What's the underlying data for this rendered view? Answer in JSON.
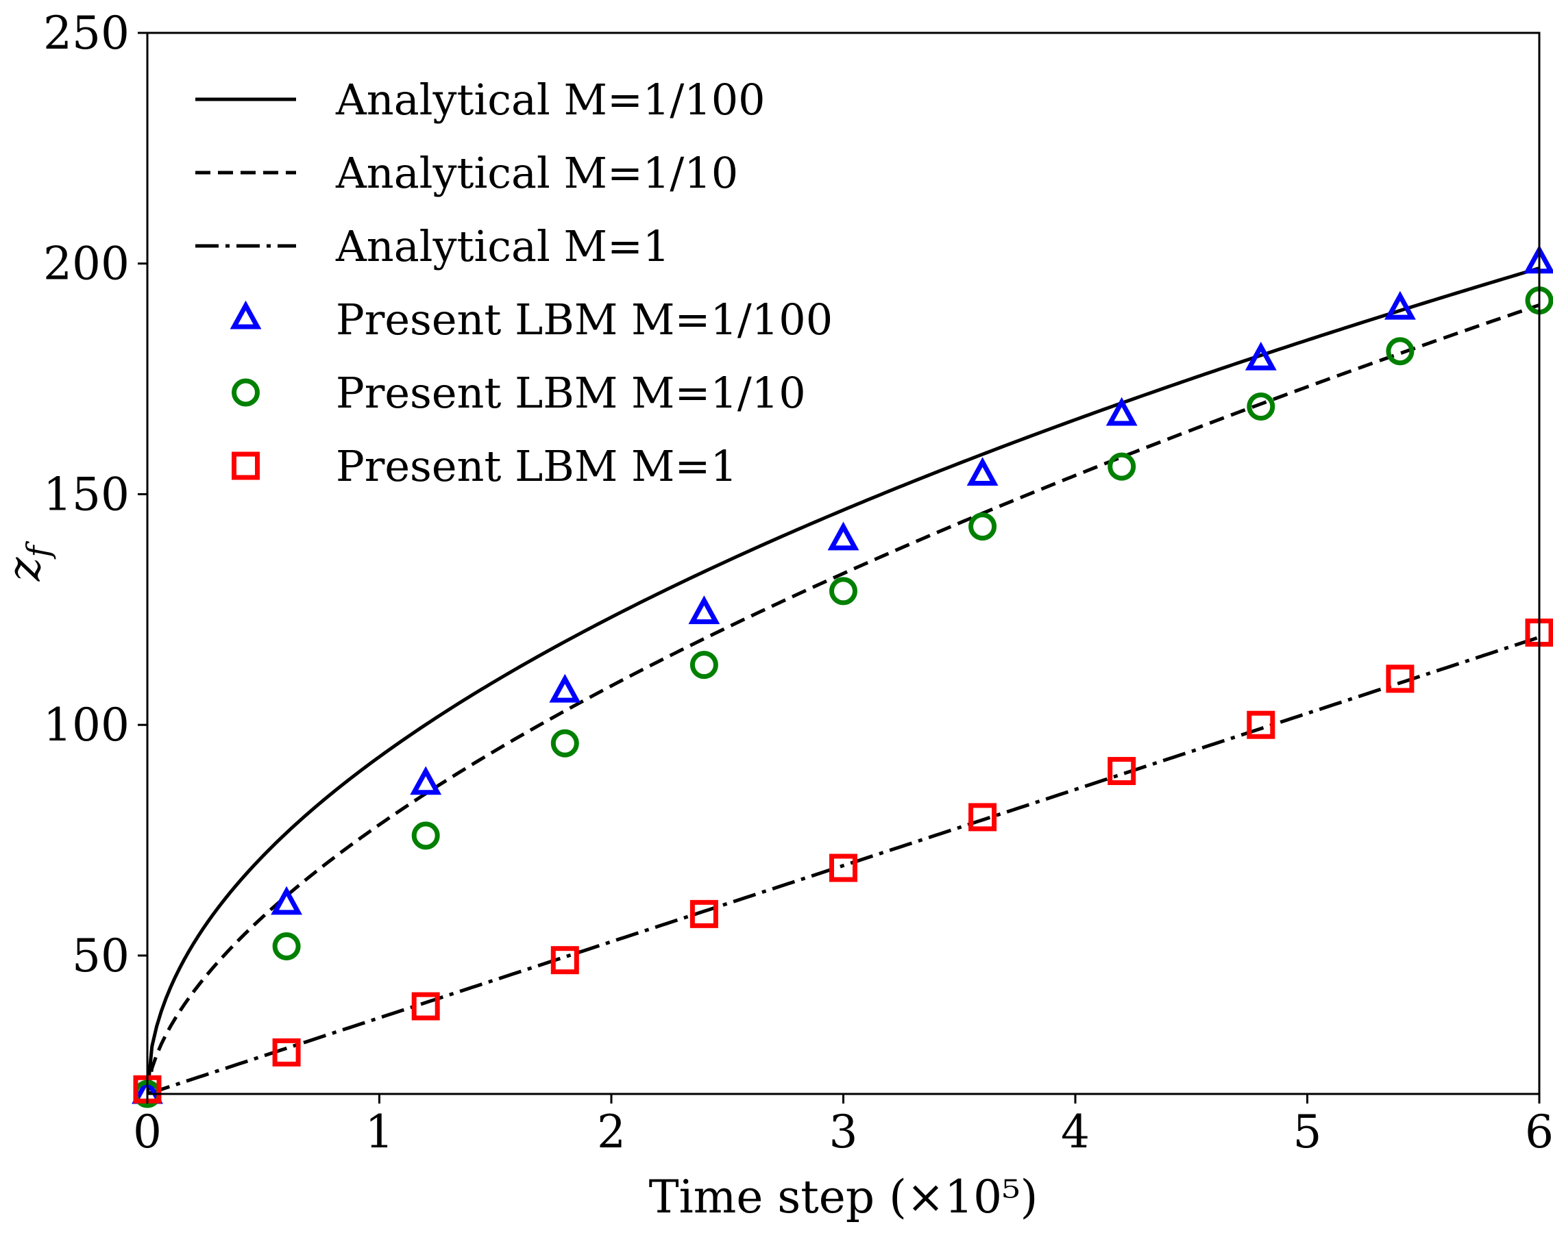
{
  "chart_data": {
    "type": "line",
    "title": "",
    "xlabel": "Time step (×10⁵)",
    "ylabel": "z_f",
    "ylabel_main": "z",
    "ylabel_sub": "f",
    "xlim": [
      0,
      6
    ],
    "ylim": [
      20,
      250
    ],
    "xticks": [
      0,
      1,
      2,
      3,
      4,
      5,
      6
    ],
    "yticks": [
      50,
      100,
      150,
      200,
      250
    ],
    "grid": false,
    "legend_position": "top-left",
    "series": [
      {
        "name": "Analytical M=1/100",
        "kind": "line",
        "style": "solid",
        "color": "#000000",
        "model": "sqrt",
        "x0": 0,
        "y0": 20,
        "x1": 6,
        "y1": 199
      },
      {
        "name": "Analytical M=1/10",
        "kind": "line",
        "style": "dashed",
        "color": "#000000",
        "model": "power",
        "x0": 0,
        "y0": 20,
        "x1": 6,
        "y1": 191,
        "exponent": 0.6
      },
      {
        "name": "Analytical M=1",
        "kind": "line",
        "style": "dashdot",
        "color": "#000000",
        "model": "linear",
        "x0": 0,
        "y0": 20,
        "x1": 6,
        "y1": 119
      },
      {
        "name": "Present LBM M=1/100",
        "kind": "marker",
        "marker": "triangle",
        "color": "#0000ff",
        "x": [
          0,
          0.6,
          1.2,
          1.8,
          2.4,
          3.0,
          3.6,
          4.2,
          4.8,
          5.4,
          6.0
        ],
        "y": [
          20,
          61,
          87,
          107,
          124,
          140,
          154,
          167,
          179,
          190,
          200
        ]
      },
      {
        "name": "Present LBM M=1/10",
        "kind": "marker",
        "marker": "circle",
        "color": "#008000",
        "x": [
          0,
          0.6,
          1.2,
          1.8,
          2.4,
          3.0,
          3.6,
          4.2,
          4.8,
          5.4,
          6.0
        ],
        "y": [
          20,
          52,
          76,
          96,
          113,
          129,
          143,
          156,
          169,
          181,
          192
        ]
      },
      {
        "name": "Present LBM M=1",
        "kind": "marker",
        "marker": "square",
        "color": "#ff0000",
        "x": [
          0,
          0.6,
          1.2,
          1.8,
          2.4,
          3.0,
          3.6,
          4.2,
          4.8,
          5.4,
          6.0
        ],
        "y": [
          21,
          29,
          39,
          49,
          59,
          69,
          80,
          90,
          100,
          110,
          120
        ]
      }
    ]
  }
}
